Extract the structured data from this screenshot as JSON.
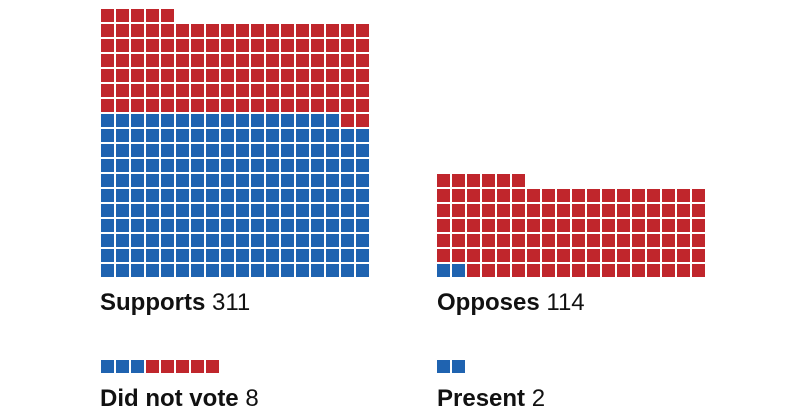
{
  "colors": {
    "democrat": "#1f63b0",
    "republican": "#c0262c"
  },
  "chart_data": {
    "type": "waffle",
    "groups": [
      {
        "key": "supports",
        "label": "Supports",
        "count": "311",
        "democrat": 196,
        "republican": 115,
        "columns": 18,
        "bottom_row": 0
      },
      {
        "key": "opposes",
        "label": "Opposes",
        "count": "114",
        "democrat": 2,
        "republican": 112,
        "columns": 18,
        "bottom_row": 0
      },
      {
        "key": "did-not-vote",
        "label": "Did not vote",
        "count": "8",
        "democrat": 3,
        "republican": 5,
        "columns": 8,
        "bottom_row": 1
      },
      {
        "key": "present",
        "label": "Present",
        "count": "2",
        "democrat": 2,
        "republican": 0,
        "columns": 8,
        "bottom_row": 1
      }
    ]
  }
}
